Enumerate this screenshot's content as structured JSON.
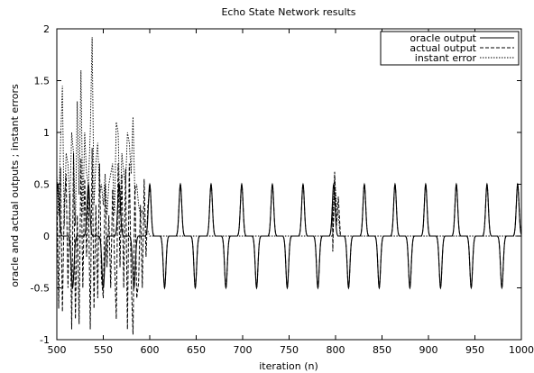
{
  "chart_data": {
    "type": "line",
    "title": "Echo State Network results",
    "xlabel": "iteration (n)",
    "ylabel": "oracle and actual outputs ; instant errors",
    "xlim": [
      500,
      1000
    ],
    "ylim": [
      -1,
      2
    ],
    "xticks": [
      500,
      550,
      600,
      650,
      700,
      750,
      800,
      850,
      900,
      950,
      1000
    ],
    "yticks": [
      -1,
      -0.5,
      0,
      0.5,
      1,
      1.5,
      2
    ],
    "xtick_labels": [
      "500",
      "550",
      "600",
      "650",
      "700",
      "750",
      "800",
      "850",
      "900",
      "950",
      "1000"
    ],
    "ytick_labels": [
      "-1",
      "-0.5",
      "0",
      "0.5",
      "1",
      "1.5",
      "2"
    ],
    "grid": false,
    "legend_position": "top-right",
    "signal": {
      "period": 33,
      "amplitude": 0.5,
      "positive_peak_x": [
        501,
        534,
        567,
        600,
        633,
        666,
        699,
        732,
        765,
        798,
        831,
        864,
        897,
        930,
        963,
        996
      ],
      "negative_peak_x": [
        517,
        550,
        583,
        616,
        649,
        682,
        715,
        748,
        781,
        814,
        847,
        880,
        913,
        946,
        979
      ]
    },
    "series": [
      {
        "name": "oracle output",
        "style": "solid",
        "description_points": "periodic pulse train: +0.5 peaks and -0.5 troughs alternating, baseline 0"
      },
      {
        "name": "actual output",
        "style": "dashed",
        "x": [
          500,
          502,
          504,
          506,
          508,
          510,
          512,
          514,
          516,
          518,
          520,
          522,
          524,
          526,
          528,
          530,
          532,
          534,
          536,
          538,
          540,
          542,
          544,
          546,
          548,
          550,
          552,
          554,
          556,
          558,
          560,
          562,
          564,
          566,
          568,
          570,
          572,
          574,
          576,
          578,
          580,
          582,
          584,
          586,
          588,
          590,
          592,
          594,
          596,
          598,
          600
        ],
        "values": [
          0.45,
          -0.7,
          0.66,
          -0.73,
          0.3,
          0.6,
          -0.5,
          0.4,
          -0.9,
          0.8,
          -0.8,
          0.2,
          -0.85,
          0.75,
          -0.5,
          0.55,
          -0.2,
          0.45,
          -0.9,
          0.85,
          -0.7,
          0.3,
          -0.6,
          0.7,
          -0.4,
          -0.6,
          0.5,
          -0.3,
          0.2,
          -0.5,
          0.45,
          -0.2,
          -0.8,
          0.7,
          -0.3,
          0.6,
          -0.5,
          0.65,
          -0.9,
          0.7,
          -0.4,
          -0.95,
          0.5,
          -0.6,
          -0.45,
          0.3,
          -0.5,
          0.55,
          -0.2,
          0.3,
          0.45
        ],
        "late_glitch": {
          "x": [
            797,
            799,
            801,
            803,
            805
          ],
          "values": [
            -0.15,
            0.62,
            0.1,
            0.38,
            0.05
          ]
        }
      },
      {
        "name": "instant error",
        "style": "dotted",
        "x": [
          500,
          502,
          504,
          506,
          508,
          510,
          512,
          514,
          516,
          518,
          520,
          522,
          524,
          526,
          528,
          530,
          532,
          534,
          536,
          538,
          540,
          542,
          544,
          546,
          548,
          550,
          552,
          554,
          556,
          558,
          560,
          562,
          564,
          566,
          568,
          570,
          572,
          574,
          576,
          578,
          580,
          582,
          584,
          586,
          588,
          590,
          592,
          594,
          596,
          598,
          600
        ],
        "values": [
          0.6,
          0.2,
          0.9,
          1.45,
          0.1,
          0.8,
          0.7,
          0.3,
          1.0,
          0.8,
          0.1,
          1.3,
          0.4,
          1.6,
          0.2,
          1.0,
          0.6,
          0.5,
          1.0,
          1.92,
          0.3,
          0.7,
          0.9,
          0.4,
          0.5,
          0.3,
          0.6,
          0.2,
          0.5,
          0.6,
          0.7,
          0.2,
          1.1,
          1.0,
          0.2,
          0.8,
          0.6,
          0.5,
          1.0,
          0.9,
          0.6,
          1.15,
          0.4,
          0.5,
          0.3,
          0.2,
          0.25,
          0.15,
          0.08,
          0.05,
          0.0
        ],
        "late_glitch": {
          "x": [
            797,
            799,
            801,
            803,
            805
          ],
          "values": [
            0.15,
            0.58,
            0.3,
            0.2,
            0.0
          ]
        }
      }
    ]
  }
}
